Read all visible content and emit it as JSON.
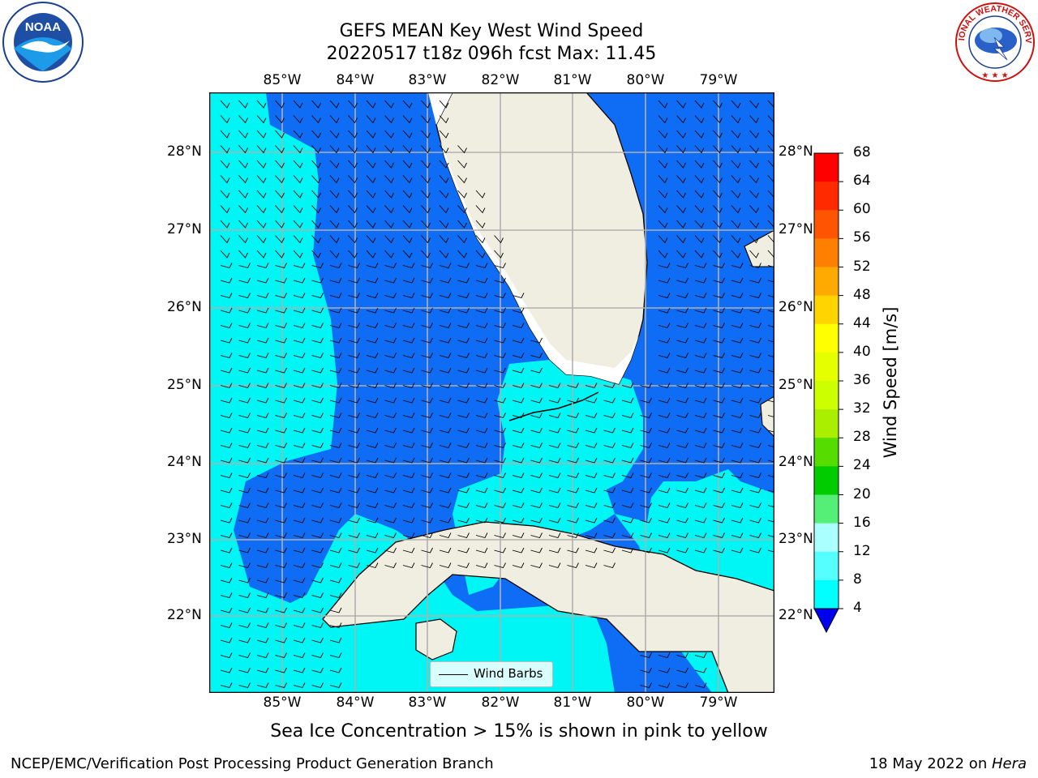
{
  "title": {
    "line1": "GEFS MEAN Key West Wind Speed",
    "line2": "20220517 t18z 096h fcst   Max: 11.45"
  },
  "map": {
    "lon_labels": [
      "85°W",
      "84°W",
      "83°W",
      "82°W",
      "81°W",
      "80°W",
      "79°W"
    ],
    "lat_labels": [
      "28°N",
      "27°N",
      "26°N",
      "25°N",
      "24°N",
      "23°N",
      "22°N"
    ],
    "legend_label": "Wind Barbs",
    "colors": {
      "ocean_dark": "#0f6cf4",
      "ocean_light": "#00f5f5",
      "land": "#efeee0",
      "gridline": "#b0b0b0"
    }
  },
  "colorbar": {
    "label": "Wind Speed [m/s]",
    "ticks": [
      "68",
      "64",
      "60",
      "56",
      "52",
      "48",
      "44",
      "40",
      "36",
      "32",
      "28",
      "24",
      "20",
      "16",
      "12",
      "8",
      "4"
    ],
    "colors": [
      "#ff0000",
      "#ff2a00",
      "#ff5500",
      "#ff8000",
      "#ffaa00",
      "#ffd400",
      "#ffff00",
      "#e6ff00",
      "#ccff00",
      "#aaee00",
      "#55dd00",
      "#00cc00",
      "#55ee77",
      "#aaffff",
      "#55ffff",
      "#00ffff",
      "#0066ff"
    ],
    "under_color": "#0000ee"
  },
  "caption": "Sea Ice Concentration > 15% is shown in pink to yellow",
  "footer": {
    "left": "NCEP/EMC/Verification Post Processing Product Generation Branch",
    "right_date": "18 May 2022 on ",
    "right_machine": "Hera"
  },
  "logos": {
    "left_text": "NOAA",
    "right_text": "NATIONAL WEATHER SERVICE"
  }
}
